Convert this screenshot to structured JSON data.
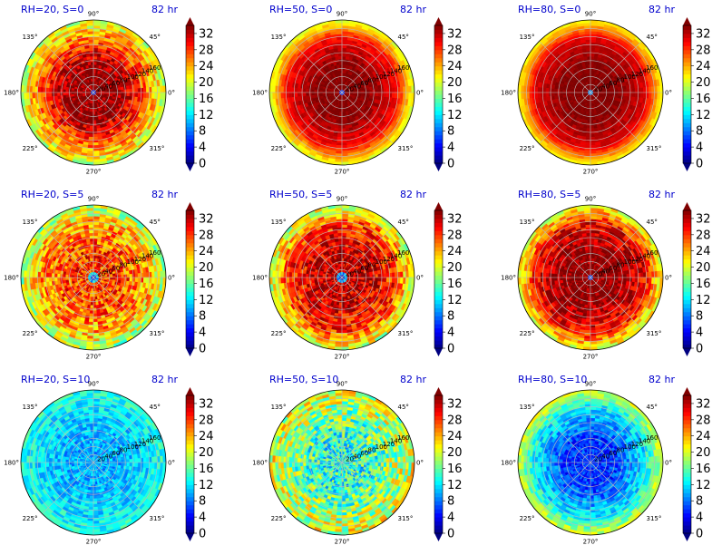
{
  "chart_data": {
    "type": "heatmap",
    "projection": "polar",
    "shared_colorbar": {
      "ticks": [
        0,
        4,
        8,
        12,
        16,
        20,
        24,
        28,
        32
      ],
      "range": [
        0,
        34
      ],
      "colormap": "jet",
      "extend": "both"
    },
    "angle_labels": [
      "0°",
      "45°",
      "90°",
      "135°",
      "180°",
      "225°",
      "270°",
      "315°"
    ],
    "radial_labels": [
      "20",
      "40",
      "60",
      "80",
      "100",
      "120",
      "140",
      "160"
    ],
    "radial_max": 200,
    "panels": [
      {
        "title": "RH=20, S=0",
        "time": "82 hr",
        "eye_radius": 10,
        "core_level": 34,
        "ring_level": 26,
        "outer_level": 19,
        "noise": 4
      },
      {
        "title": "RH=50, S=0",
        "time": "82 hr",
        "eye_radius": 8,
        "core_level": 34,
        "ring_level": 30,
        "outer_level": 20,
        "noise": 1.5
      },
      {
        "title": "RH=80, S=0",
        "time": "82 hr",
        "eye_radius": 5,
        "core_level": 34,
        "ring_level": 31,
        "outer_level": 21,
        "noise": 1
      },
      {
        "title": "RH=20, S=5",
        "time": "82 hr",
        "eye_radius": 12,
        "core_level": 28,
        "ring_level": 24,
        "outer_level": 18,
        "noise": 5
      },
      {
        "title": "RH=50, S=5",
        "time": "82 hr",
        "eye_radius": 14,
        "core_level": 32,
        "ring_level": 28,
        "outer_level": 19,
        "noise": 4.5
      },
      {
        "title": "RH=80, S=5",
        "time": "82 hr",
        "eye_radius": 8,
        "core_level": 34,
        "ring_level": 30,
        "outer_level": 20,
        "noise": 3.5
      },
      {
        "title": "RH=20, S=10",
        "time": "82 hr",
        "eye_radius": 0,
        "core_level": 10,
        "ring_level": 12,
        "outer_level": 14,
        "noise": 3
      },
      {
        "title": "RH=50, S=10",
        "time": "82 hr",
        "eye_radius": 0,
        "core_level": 14,
        "ring_level": 18,
        "outer_level": 20,
        "noise": 6
      },
      {
        "title": "RH=80, S=10",
        "time": "82 hr",
        "eye_radius": 0,
        "core_level": 6,
        "ring_level": 12,
        "outer_level": 20,
        "noise": 3
      }
    ]
  }
}
